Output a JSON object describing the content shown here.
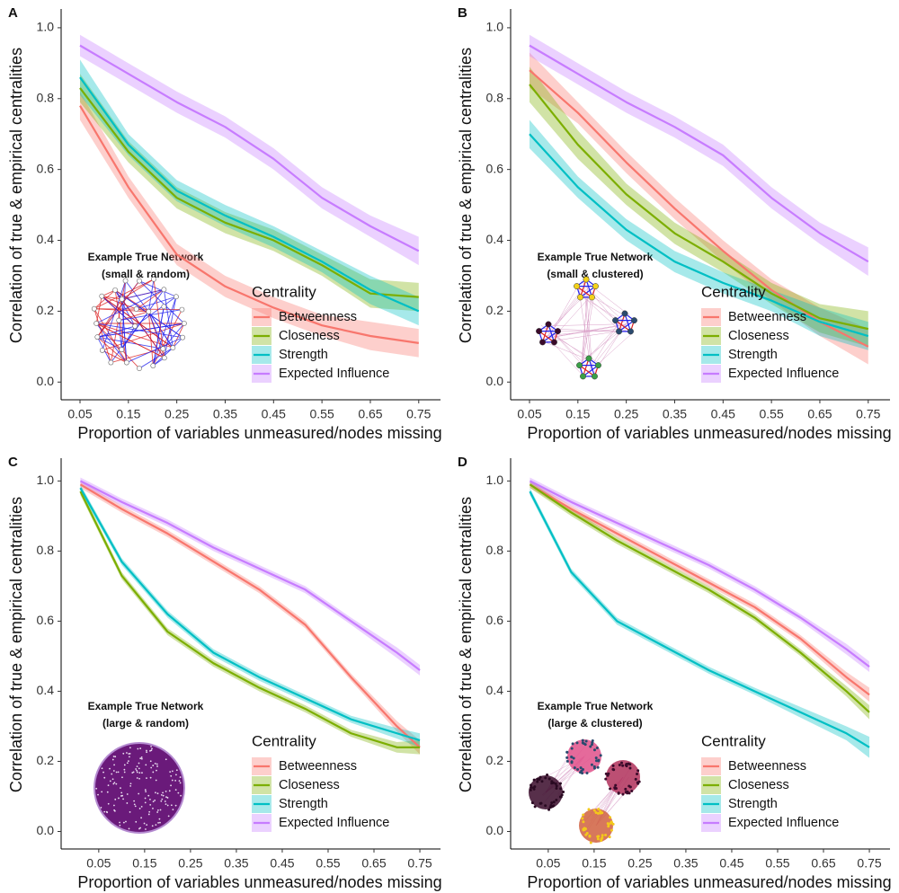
{
  "chart_data": [
    {
      "type": "line",
      "panel_label": "A",
      "x_label": "Proportion of variables unmeasured/nodes missing",
      "y_label": "Correlation of true & empirical centralities",
      "inset_title": "Example True Network",
      "inset_subtitle": "(small & random)",
      "legend_title": "Centrality",
      "x": [
        0.05,
        0.15,
        0.25,
        0.35,
        0.45,
        0.55,
        0.65,
        0.75
      ],
      "xlim": [
        0.011,
        0.795
      ],
      "xticks": [
        0.05,
        0.15,
        0.25,
        0.35,
        0.45,
        0.55,
        0.65,
        0.75
      ],
      "ylim": [
        -0.05,
        1.053
      ],
      "yticks": [
        {
          "value": 0,
          "label": "0.0"
        },
        0.2,
        0.4,
        0.6,
        0.8,
        {
          "value": 1,
          "label": "1.0"
        }
      ],
      "series": [
        {
          "name": "Betweenness",
          "color": "#F8766D",
          "values": [
            0.78,
            0.55,
            0.36,
            0.27,
            0.21,
            0.16,
            0.13,
            0.11
          ],
          "ci": [
            0.04,
            0.03,
            0.03,
            0.03,
            0.03,
            0.03,
            0.04,
            0.04
          ]
        },
        {
          "name": "Closeness",
          "color": "#7CAE00",
          "values": [
            0.83,
            0.65,
            0.52,
            0.45,
            0.4,
            0.33,
            0.25,
            0.24
          ],
          "ci": [
            0.04,
            0.03,
            0.03,
            0.03,
            0.03,
            0.03,
            0.04,
            0.04
          ]
        },
        {
          "name": "Strength",
          "color": "#00BFC4",
          "values": [
            0.86,
            0.67,
            0.54,
            0.47,
            0.41,
            0.34,
            0.26,
            0.2
          ],
          "ci": [
            0.05,
            0.03,
            0.03,
            0.03,
            0.03,
            0.03,
            0.04,
            0.04
          ]
        },
        {
          "name": "Expected Influence",
          "color": "#C77CFF",
          "values": [
            0.95,
            0.87,
            0.79,
            0.72,
            0.63,
            0.52,
            0.44,
            0.37
          ],
          "ci": [
            0.03,
            0.03,
            0.03,
            0.03,
            0.03,
            0.03,
            0.03,
            0.04
          ]
        }
      ]
    },
    {
      "type": "line",
      "panel_label": "B",
      "x_label": "Proportion of variables unmeasured/nodes missing",
      "y_label": "Correlation of true & empirical centralities",
      "inset_title": "Example True Network",
      "inset_subtitle": "(small & clustered)",
      "legend_title": "Centrality",
      "x": [
        0.05,
        0.15,
        0.25,
        0.35,
        0.45,
        0.55,
        0.65,
        0.75
      ],
      "xlim": [
        0.011,
        0.795
      ],
      "xticks": [
        0.05,
        0.15,
        0.25,
        0.35,
        0.45,
        0.55,
        0.65,
        0.75
      ],
      "ylim": [
        -0.05,
        1.053
      ],
      "yticks": [
        {
          "value": 0,
          "label": "0.0"
        },
        0.2,
        0.4,
        0.6,
        0.8,
        {
          "value": 1,
          "label": "1.0"
        }
      ],
      "series": [
        {
          "name": "Betweenness",
          "color": "#F8766D",
          "values": [
            0.88,
            0.76,
            0.62,
            0.49,
            0.37,
            0.26,
            0.17,
            0.1
          ],
          "ci": [
            0.05,
            0.03,
            0.03,
            0.03,
            0.03,
            0.03,
            0.04,
            0.05
          ]
        },
        {
          "name": "Closeness",
          "color": "#7CAE00",
          "values": [
            0.84,
            0.67,
            0.53,
            0.42,
            0.34,
            0.25,
            0.18,
            0.15
          ],
          "ci": [
            0.05,
            0.04,
            0.03,
            0.03,
            0.03,
            0.03,
            0.04,
            0.05
          ]
        },
        {
          "name": "Strength",
          "color": "#00BFC4",
          "values": [
            0.7,
            0.55,
            0.43,
            0.34,
            0.28,
            0.23,
            0.17,
            0.13
          ],
          "ci": [
            0.04,
            0.03,
            0.03,
            0.03,
            0.03,
            0.03,
            0.04,
            0.04
          ]
        },
        {
          "name": "Expected Influence",
          "color": "#C77CFF",
          "values": [
            0.95,
            0.87,
            0.79,
            0.72,
            0.64,
            0.52,
            0.42,
            0.34
          ],
          "ci": [
            0.03,
            0.03,
            0.03,
            0.03,
            0.03,
            0.03,
            0.03,
            0.04
          ]
        }
      ]
    },
    {
      "type": "line",
      "panel_label": "C",
      "x_label": "Proportion of variables unmeasured/nodes missing",
      "y_label": "Correlation of true & empirical centralities",
      "inset_title": "Example True Network",
      "inset_subtitle": "(large & random)",
      "legend_title": "Centrality",
      "x": [
        0.01,
        0.1,
        0.2,
        0.3,
        0.4,
        0.5,
        0.6,
        0.7,
        0.75
      ],
      "xlim": [
        -0.032,
        0.795
      ],
      "xticks": [
        0.05,
        0.15,
        0.25,
        0.35,
        0.45,
        0.55,
        0.65,
        0.75
      ],
      "ylim": [
        -0.05,
        1.065
      ],
      "yticks": [
        {
          "value": 0,
          "label": "0.0"
        },
        0.2,
        0.4,
        0.6,
        0.8,
        {
          "value": 1,
          "label": "1.0"
        }
      ],
      "series": [
        {
          "name": "Betweenness",
          "color": "#F8766D",
          "values": [
            0.99,
            0.92,
            0.85,
            0.77,
            0.69,
            0.59,
            0.44,
            0.3,
            0.24
          ],
          "ci": [
            0.01,
            0.01,
            0.01,
            0.01,
            0.01,
            0.01,
            0.01,
            0.015,
            0.02
          ]
        },
        {
          "name": "Closeness",
          "color": "#7CAE00",
          "values": [
            0.97,
            0.73,
            0.57,
            0.48,
            0.41,
            0.35,
            0.28,
            0.24,
            0.24
          ],
          "ci": [
            0.01,
            0.01,
            0.01,
            0.01,
            0.01,
            0.01,
            0.01,
            0.015,
            0.02
          ]
        },
        {
          "name": "Strength",
          "color": "#00BFC4",
          "values": [
            0.98,
            0.77,
            0.62,
            0.51,
            0.44,
            0.38,
            0.32,
            0.28,
            0.26
          ],
          "ci": [
            0.01,
            0.01,
            0.01,
            0.01,
            0.01,
            0.01,
            0.01,
            0.015,
            0.02
          ]
        },
        {
          "name": "Expected Influence",
          "color": "#C77CFF",
          "values": [
            1.0,
            0.94,
            0.88,
            0.81,
            0.75,
            0.69,
            0.6,
            0.51,
            0.46
          ],
          "ci": [
            0.01,
            0.01,
            0.01,
            0.01,
            0.01,
            0.01,
            0.01,
            0.015,
            0.015
          ]
        }
      ]
    },
    {
      "type": "line",
      "panel_label": "D",
      "x_label": "Proportion of variables unmeasured/nodes missing",
      "y_label": "Correlation of true & empirical centralities",
      "inset_title": "Example True Network",
      "inset_subtitle": "(large & clustered)",
      "legend_title": "Centrality",
      "x": [
        0.01,
        0.1,
        0.2,
        0.3,
        0.4,
        0.5,
        0.6,
        0.7,
        0.75
      ],
      "xlim": [
        -0.032,
        0.795
      ],
      "xticks": [
        0.05,
        0.15,
        0.25,
        0.35,
        0.45,
        0.55,
        0.65,
        0.75
      ],
      "ylim": [
        -0.05,
        1.065
      ],
      "yticks": [
        {
          "value": 0,
          "label": "0.0"
        },
        0.2,
        0.4,
        0.6,
        0.8,
        {
          "value": 1,
          "label": "1.0"
        }
      ],
      "series": [
        {
          "name": "Betweenness",
          "color": "#F8766D",
          "values": [
            0.99,
            0.92,
            0.85,
            0.78,
            0.71,
            0.64,
            0.55,
            0.44,
            0.39
          ],
          "ci": [
            0.01,
            0.01,
            0.01,
            0.01,
            0.01,
            0.01,
            0.01,
            0.015,
            0.02
          ]
        },
        {
          "name": "Closeness",
          "color": "#7CAE00",
          "values": [
            0.99,
            0.91,
            0.83,
            0.76,
            0.69,
            0.61,
            0.51,
            0.4,
            0.34
          ],
          "ci": [
            0.01,
            0.01,
            0.01,
            0.01,
            0.01,
            0.01,
            0.01,
            0.015,
            0.02
          ]
        },
        {
          "name": "Strength",
          "color": "#00BFC4",
          "values": [
            0.97,
            0.74,
            0.6,
            0.53,
            0.46,
            0.4,
            0.34,
            0.28,
            0.24
          ],
          "ci": [
            0.01,
            0.01,
            0.01,
            0.01,
            0.01,
            0.01,
            0.015,
            0.02,
            0.03
          ]
        },
        {
          "name": "Expected Influence",
          "color": "#C77CFF",
          "values": [
            1.0,
            0.94,
            0.88,
            0.82,
            0.76,
            0.69,
            0.61,
            0.52,
            0.47
          ],
          "ci": [
            0.01,
            0.01,
            0.01,
            0.01,
            0.01,
            0.01,
            0.01,
            0.015,
            0.015
          ]
        }
      ]
    }
  ]
}
